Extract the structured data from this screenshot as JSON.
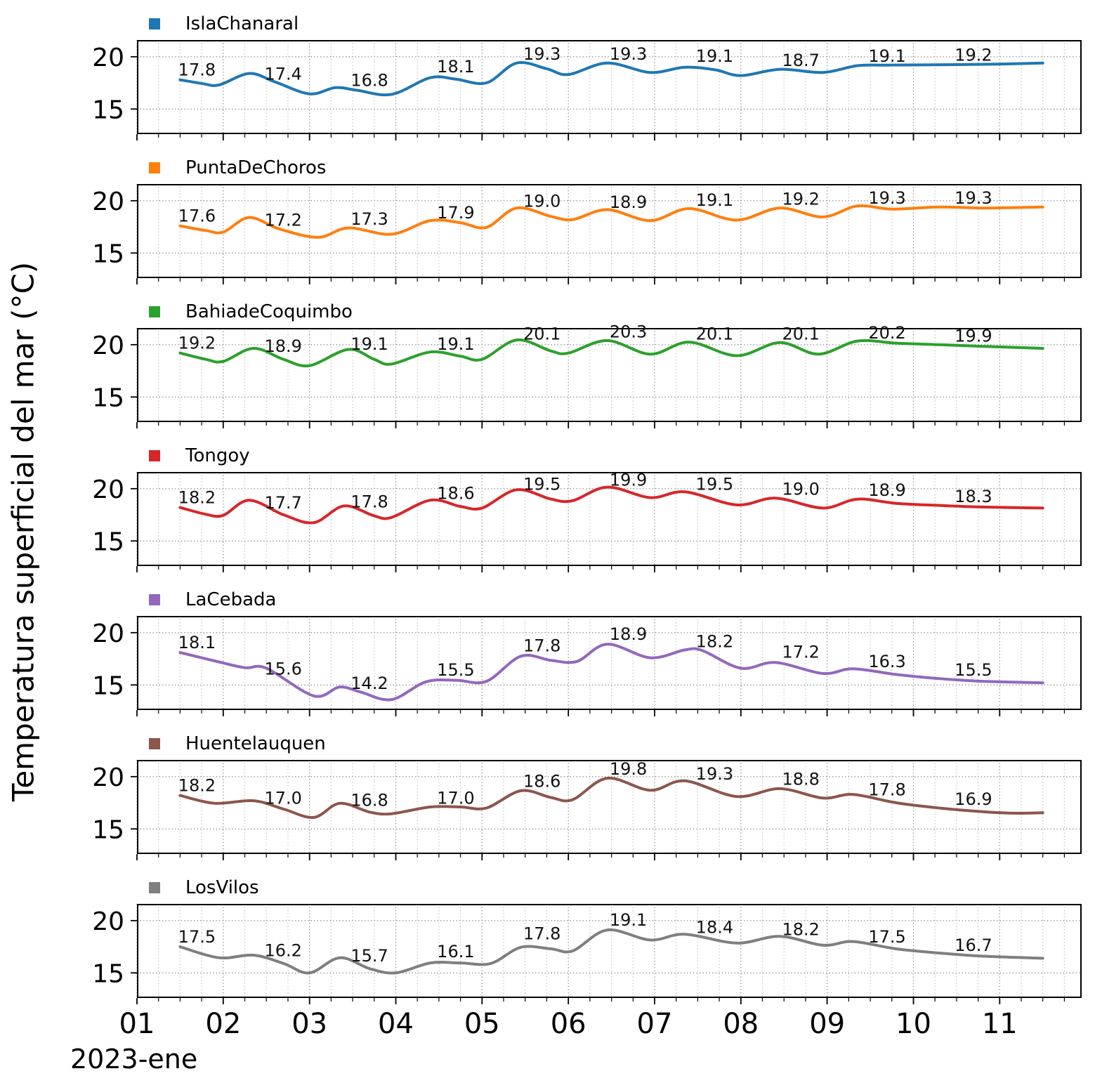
{
  "figure": {
    "ylabel": "Temperatura superficial del mar (°C)",
    "x_axis_secondary_label": "2023-ene"
  },
  "chart_data": {
    "type": "line",
    "title": "",
    "ylabel": "Temperatura superficial del mar (°C)",
    "xlabel": "2023-ene",
    "x_meaning": "day of month (January 2023)",
    "xlim": [
      1.0,
      11.95
    ],
    "ylim": [
      12.6,
      21.6
    ],
    "xticks": [
      1,
      2,
      3,
      4,
      5,
      6,
      7,
      8,
      9,
      10,
      11
    ],
    "xtick_labels": [
      "01",
      "02",
      "03",
      "04",
      "05",
      "06",
      "07",
      "08",
      "09",
      "10",
      "11"
    ],
    "yticks": [
      20,
      15
    ],
    "ytick_labels": [
      "20",
      "15"
    ],
    "grid": "dotted; vertical major+minor (0.25 day), horizontal at 15 and 20",
    "legend_position": "above each subplot, left-aligned",
    "label_days": [
      1.5,
      2.5,
      3.5,
      4.5,
      5.5,
      6.5,
      7.5,
      8.5,
      9.5,
      10.5
    ],
    "series": [
      {
        "name": "IslaChanaral",
        "color": "#1f77b4",
        "daily_labels": [
          "17.8",
          "17.4",
          "16.8",
          "18.1",
          "19.3",
          "19.3",
          "19.1",
          "18.7",
          "19.1",
          "19.2"
        ],
        "curve": {
          "days": [
            1.5,
            1.75,
            1.95,
            2.3,
            2.6,
            3.0,
            3.3,
            3.55,
            3.95,
            4.4,
            4.7,
            5.05,
            5.4,
            5.75,
            6.0,
            6.45,
            6.95,
            7.35,
            7.7,
            8.0,
            8.45,
            8.95,
            9.35,
            9.7,
            10.5,
            11.0,
            11.5
          ],
          "temps": [
            17.8,
            17.45,
            17.3,
            18.4,
            17.6,
            16.45,
            17.05,
            16.8,
            16.4,
            18.0,
            17.85,
            17.5,
            19.4,
            18.85,
            18.3,
            19.4,
            18.5,
            19.0,
            18.75,
            18.2,
            18.8,
            18.5,
            19.15,
            19.2,
            19.25,
            19.3,
            19.4
          ]
        }
      },
      {
        "name": "PuntaDeChoros",
        "color": "#ff7f0e",
        "daily_labels": [
          "17.6",
          "17.2",
          "17.3",
          "17.9",
          "19.0",
          "18.9",
          "19.1",
          "19.2",
          "19.3",
          "19.3"
        ],
        "curve": {
          "days": [
            1.5,
            1.8,
            2.0,
            2.3,
            2.65,
            3.1,
            3.45,
            3.95,
            4.4,
            4.75,
            5.05,
            5.4,
            5.8,
            6.05,
            6.45,
            6.95,
            7.4,
            7.95,
            8.45,
            8.95,
            9.35,
            9.75,
            10.3,
            10.8,
            11.2,
            11.5
          ],
          "temps": [
            17.6,
            17.15,
            17.0,
            18.4,
            17.3,
            16.5,
            17.4,
            16.8,
            18.1,
            17.9,
            17.45,
            19.3,
            18.5,
            18.2,
            19.15,
            18.1,
            19.25,
            18.15,
            19.3,
            18.45,
            19.5,
            19.2,
            19.4,
            19.3,
            19.35,
            19.4
          ]
        }
      },
      {
        "name": "BahiadeCoquimbo",
        "color": "#2ca02c",
        "daily_labels": [
          "19.2",
          "18.9",
          "19.1",
          "19.1",
          "20.1",
          "20.3",
          "20.1",
          "20.1",
          "20.2",
          "19.9"
        ],
        "curve": {
          "days": [
            1.5,
            1.8,
            2.0,
            2.35,
            2.7,
            3.0,
            3.45,
            3.75,
            3.95,
            4.4,
            4.75,
            5.0,
            5.4,
            5.8,
            6.0,
            6.45,
            6.95,
            7.4,
            7.95,
            8.45,
            8.9,
            9.35,
            9.8,
            10.3,
            10.8,
            11.5
          ],
          "temps": [
            19.2,
            18.6,
            18.4,
            19.65,
            18.6,
            18.0,
            19.55,
            18.6,
            18.15,
            19.3,
            18.9,
            18.6,
            20.45,
            19.4,
            19.2,
            20.4,
            19.1,
            20.25,
            18.95,
            20.2,
            19.1,
            20.35,
            20.15,
            20.0,
            19.85,
            19.65
          ]
        }
      },
      {
        "name": "Tongoy",
        "color": "#d62728",
        "daily_labels": [
          "18.2",
          "17.7",
          "17.8",
          "18.6",
          "19.5",
          "19.9",
          "19.5",
          "19.0",
          "18.9",
          "18.3"
        ],
        "curve": {
          "days": [
            1.5,
            1.8,
            2.0,
            2.3,
            2.7,
            3.05,
            3.4,
            3.75,
            3.95,
            4.4,
            4.75,
            5.0,
            5.4,
            5.8,
            6.05,
            6.45,
            6.95,
            7.35,
            7.95,
            8.4,
            8.95,
            9.35,
            9.8,
            10.3,
            10.8,
            11.5
          ],
          "temps": [
            18.2,
            17.55,
            17.45,
            18.9,
            17.5,
            16.75,
            18.35,
            17.4,
            17.25,
            18.9,
            18.3,
            18.15,
            19.9,
            19.0,
            18.85,
            20.15,
            19.15,
            19.7,
            18.45,
            19.1,
            18.15,
            19.0,
            18.6,
            18.4,
            18.25,
            18.15
          ]
        }
      },
      {
        "name": "LaCebada",
        "color": "#9467bd",
        "daily_labels": [
          "18.1",
          "15.6",
          "14.2",
          "15.5",
          "17.8",
          "18.9",
          "18.2",
          "17.2",
          "16.3",
          "15.5"
        ],
        "curve": {
          "days": [
            1.5,
            1.9,
            2.25,
            2.5,
            3.05,
            3.35,
            3.6,
            3.95,
            4.35,
            4.7,
            5.05,
            5.45,
            5.8,
            6.1,
            6.45,
            6.95,
            7.35,
            7.55,
            8.0,
            8.4,
            8.95,
            9.3,
            9.8,
            10.3,
            10.8,
            11.5
          ],
          "temps": [
            18.1,
            17.3,
            16.65,
            16.6,
            13.95,
            14.8,
            14.3,
            13.6,
            15.3,
            15.45,
            15.35,
            17.75,
            17.35,
            17.25,
            18.9,
            17.6,
            18.35,
            18.3,
            16.6,
            17.15,
            16.1,
            16.55,
            16.0,
            15.6,
            15.35,
            15.2
          ]
        }
      },
      {
        "name": "Huentelauquen",
        "color": "#8c564b",
        "daily_labels": [
          "18.2",
          "17.0",
          "16.8",
          "17.0",
          "18.6",
          "19.8",
          "19.3",
          "18.8",
          "17.8",
          "16.9"
        ],
        "curve": {
          "days": [
            1.5,
            1.9,
            2.35,
            2.7,
            3.05,
            3.35,
            3.7,
            3.95,
            4.4,
            4.75,
            5.05,
            5.45,
            5.8,
            6.05,
            6.45,
            6.95,
            7.35,
            7.95,
            8.45,
            8.95,
            9.3,
            9.8,
            10.3,
            10.8,
            11.2,
            11.5
          ],
          "temps": [
            18.2,
            17.45,
            17.7,
            16.9,
            16.1,
            17.45,
            16.6,
            16.45,
            17.1,
            17.1,
            17.0,
            18.65,
            18.0,
            17.8,
            19.85,
            18.7,
            19.6,
            18.1,
            18.85,
            17.95,
            18.3,
            17.5,
            17.0,
            16.65,
            16.5,
            16.55
          ]
        }
      },
      {
        "name": "LosVilos",
        "color": "#7f7f7f",
        "daily_labels": [
          "17.5",
          "16.2",
          "15.7",
          "16.1",
          "17.8",
          "19.1",
          "18.4",
          "18.2",
          "17.5",
          "16.7"
        ],
        "curve": {
          "days": [
            1.5,
            1.95,
            2.35,
            2.7,
            3.0,
            3.35,
            3.7,
            4.0,
            4.4,
            4.75,
            5.1,
            5.45,
            5.8,
            6.05,
            6.45,
            6.95,
            7.35,
            7.95,
            8.45,
            8.95,
            9.3,
            9.8,
            10.3,
            10.8,
            11.5
          ],
          "temps": [
            17.5,
            16.45,
            16.7,
            15.9,
            15.0,
            16.45,
            15.4,
            15.0,
            15.95,
            15.95,
            15.9,
            17.45,
            17.3,
            17.1,
            19.1,
            18.15,
            18.7,
            17.85,
            18.5,
            17.65,
            18.0,
            17.3,
            16.9,
            16.6,
            16.4
          ]
        }
      }
    ]
  }
}
